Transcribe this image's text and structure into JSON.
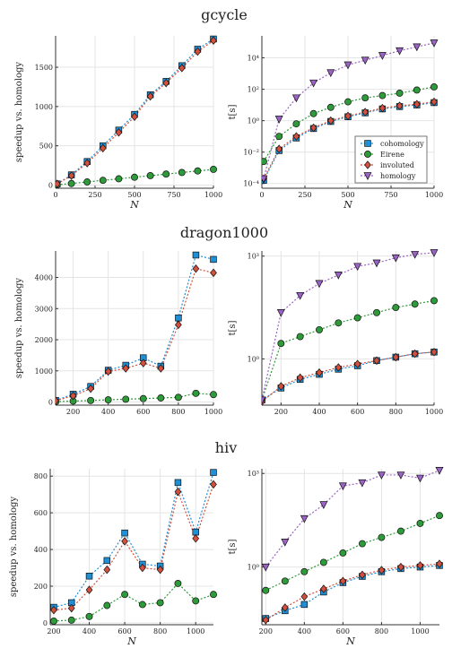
{
  "chart_data": [
    {
      "type": "scatter",
      "panel": "gcycle-speedup",
      "title": "gcycle",
      "xlabel": "N",
      "ylabel": "speedup vs. homology",
      "xlim": [
        0,
        1000
      ],
      "ylim": [
        -40,
        1900
      ],
      "xticks": [
        0,
        250,
        500,
        750,
        1000
      ],
      "xtick_labels": [
        "0",
        "250",
        "500",
        "750",
        "1000"
      ],
      "yticks": [
        0,
        500,
        1000,
        1500
      ],
      "ytick_labels": [
        "0",
        "500",
        "1000",
        "1500"
      ],
      "yscale": "linear",
      "x": [
        10,
        100,
        200,
        300,
        400,
        500,
        600,
        700,
        800,
        900,
        1000
      ],
      "series": [
        {
          "name": "cohomology",
          "values": [
            15,
            130,
            300,
            500,
            700,
            900,
            1150,
            1320,
            1520,
            1730,
            1860
          ]
        },
        {
          "name": "Eirene",
          "values": [
            5,
            20,
            40,
            60,
            80,
            100,
            120,
            140,
            160,
            180,
            200
          ]
        },
        {
          "name": "involuted",
          "values": [
            15,
            120,
            280,
            470,
            670,
            870,
            1130,
            1300,
            1490,
            1700,
            1840
          ]
        }
      ]
    },
    {
      "type": "scatter",
      "panel": "gcycle-time",
      "title": "gcycle",
      "xlabel": "N",
      "ylabel": "t[s]",
      "xlim": [
        0,
        1000
      ],
      "ylim": [
        -4.3,
        5.4
      ],
      "xticks": [
        0,
        250,
        500,
        750,
        1000
      ],
      "xtick_labels": [
        "0",
        "250",
        "500",
        "750",
        "1000"
      ],
      "yticks": [
        -4,
        -2,
        0,
        2,
        4
      ],
      "ytick_labels": [
        "10⁻⁴",
        "10⁻²",
        "10⁰",
        "10²",
        "10⁴"
      ],
      "yscale": "log10",
      "legend": "bottom-right",
      "x": [
        10,
        100,
        200,
        300,
        400,
        500,
        600,
        700,
        800,
        900,
        1000
      ],
      "series": [
        {
          "name": "cohomology",
          "values": [
            -3.8,
            -1.9,
            -1.1,
            -0.5,
            -0.05,
            0.25,
            0.5,
            0.75,
            0.9,
            1.0,
            1.15
          ]
        },
        {
          "name": "Eirene",
          "values": [
            -2.6,
            -1.0,
            -0.2,
            0.45,
            0.85,
            1.2,
            1.45,
            1.6,
            1.75,
            1.95,
            2.15
          ]
        },
        {
          "name": "involuted",
          "values": [
            -3.7,
            -1.8,
            -1.0,
            -0.45,
            0.0,
            0.3,
            0.55,
            0.8,
            0.95,
            1.05,
            1.2
          ]
        },
        {
          "name": "homology",
          "values": [
            -3.7,
            0.1,
            1.45,
            2.4,
            3.05,
            3.55,
            3.85,
            4.15,
            4.45,
            4.7,
            4.95
          ]
        }
      ]
    },
    {
      "type": "scatter",
      "panel": "dragon1000-speedup",
      "title": "dragon1000",
      "xlabel": "",
      "ylabel": "speedup vs. homology",
      "xlim": [
        100,
        1000
      ],
      "ylim": [
        -100,
        4850
      ],
      "xticks": [
        200,
        400,
        600,
        800,
        1000
      ],
      "xtick_labels": [
        "200",
        "400",
        "600",
        "800",
        "1000"
      ],
      "yticks": [
        0,
        1000,
        2000,
        3000,
        4000
      ],
      "ytick_labels": [
        "0",
        "1000",
        "2000",
        "3000",
        "4000"
      ],
      "yscale": "linear",
      "x": [
        100,
        200,
        300,
        400,
        500,
        600,
        700,
        800,
        900,
        1000
      ],
      "series": [
        {
          "name": "cohomology",
          "values": [
            50,
            250,
            500,
            1020,
            1180,
            1420,
            1150,
            2700,
            4720,
            4580
          ]
        },
        {
          "name": "Eirene",
          "values": [
            10,
            30,
            50,
            70,
            90,
            110,
            130,
            150,
            280,
            240
          ]
        },
        {
          "name": "involuted",
          "values": [
            40,
            200,
            430,
            980,
            1080,
            1250,
            1080,
            2480,
            4280,
            4150
          ]
        }
      ]
    },
    {
      "type": "scatter",
      "panel": "dragon1000-time",
      "title": "dragon1000",
      "xlabel": "",
      "ylabel": "t[s]",
      "xlim": [
        100,
        1000
      ],
      "ylim": [
        -1.35,
        3.15
      ],
      "xticks": [
        200,
        400,
        600,
        800,
        1000
      ],
      "xtick_labels": [
        "200",
        "400",
        "600",
        "800",
        "1000"
      ],
      "yticks": [
        0,
        3
      ],
      "ytick_labels": [
        "10⁰",
        "10³"
      ],
      "yscale": "log10",
      "x": [
        100,
        200,
        300,
        400,
        500,
        600,
        700,
        800,
        900,
        1000
      ],
      "series": [
        {
          "name": "cohomology",
          "values": [
            -1.2,
            -0.85,
            -0.6,
            -0.45,
            -0.3,
            -0.2,
            -0.05,
            0.05,
            0.15,
            0.2
          ]
        },
        {
          "name": "Eirene",
          "values": [
            -1.2,
            0.45,
            0.65,
            0.85,
            1.05,
            1.2,
            1.35,
            1.5,
            1.6,
            1.7
          ]
        },
        {
          "name": "involuted",
          "values": [
            -1.25,
            -0.8,
            -0.55,
            -0.4,
            -0.25,
            -0.15,
            -0.05,
            0.05,
            0.15,
            0.2
          ]
        },
        {
          "name": "homology",
          "values": [
            -1.2,
            1.35,
            1.85,
            2.2,
            2.45,
            2.7,
            2.8,
            2.95,
            3.05,
            3.1
          ]
        }
      ]
    },
    {
      "type": "scatter",
      "panel": "hiv-speedup",
      "title": "hiv",
      "xlabel": "N",
      "ylabel": "speedup vs. homology",
      "xlim": [
        180,
        1100
      ],
      "ylim": [
        -10,
        840
      ],
      "xticks": [
        200,
        400,
        600,
        800,
        1000
      ],
      "xtick_labels": [
        "200",
        "400",
        "600",
        "800",
        "1000"
      ],
      "yticks": [
        0,
        200,
        400,
        600,
        800
      ],
      "ytick_labels": [
        "0",
        "200",
        "400",
        "600",
        "800"
      ],
      "yscale": "linear",
      "x": [
        200,
        300,
        400,
        500,
        600,
        700,
        800,
        900,
        1000,
        1100
      ],
      "series": [
        {
          "name": "cohomology",
          "values": [
            85,
            110,
            255,
            340,
            490,
            320,
            310,
            765,
            495,
            820
          ]
        },
        {
          "name": "Eirene",
          "values": [
            10,
            15,
            35,
            95,
            155,
            100,
            110,
            215,
            120,
            155
          ]
        },
        {
          "name": "involuted",
          "values": [
            70,
            80,
            180,
            290,
            445,
            300,
            290,
            715,
            460,
            755
          ]
        }
      ]
    },
    {
      "type": "scatter",
      "panel": "hiv-time",
      "title": "hiv",
      "xlabel": "N",
      "ylabel": "t[s]",
      "xlim": [
        180,
        1100
      ],
      "ylim": [
        -1.85,
        3.15
      ],
      "xticks": [
        200,
        400,
        600,
        800,
        1000
      ],
      "xtick_labels": [
        "200",
        "400",
        "600",
        "800",
        "1000"
      ],
      "yticks": [
        0,
        3
      ],
      "ytick_labels": [
        "10⁰",
        "10³"
      ],
      "yscale": "log10",
      "x": [
        200,
        300,
        400,
        500,
        600,
        700,
        800,
        900,
        1000,
        1100
      ],
      "series": [
        {
          "name": "cohomology",
          "values": [
            -1.65,
            -1.4,
            -1.2,
            -0.8,
            -0.5,
            -0.3,
            -0.15,
            -0.05,
            0.0,
            0.05
          ]
        },
        {
          "name": "Eirene",
          "values": [
            -0.75,
            -0.45,
            -0.15,
            0.15,
            0.45,
            0.75,
            0.95,
            1.15,
            1.4,
            1.65
          ]
        },
        {
          "name": "involuted",
          "values": [
            -1.7,
            -1.3,
            -0.95,
            -0.7,
            -0.45,
            -0.25,
            -0.1,
            0.0,
            0.05,
            0.1
          ]
        },
        {
          "name": "homology",
          "values": [
            0.0,
            0.8,
            1.55,
            2.0,
            2.6,
            2.7,
            2.95,
            2.95,
            2.85,
            3.1
          ]
        }
      ]
    }
  ],
  "series_style": {
    "cohomology": {
      "color": "#1f8fd6",
      "marker": "square"
    },
    "Eirene": {
      "color": "#2e9a3a",
      "marker": "circle"
    },
    "involuted": {
      "color": "#d2503d",
      "marker": "diamond"
    },
    "homology": {
      "color": "#9b63c4",
      "marker": "triangle-down"
    }
  },
  "legend_entries": [
    "cohomology",
    "Eirene",
    "involuted",
    "homology"
  ]
}
